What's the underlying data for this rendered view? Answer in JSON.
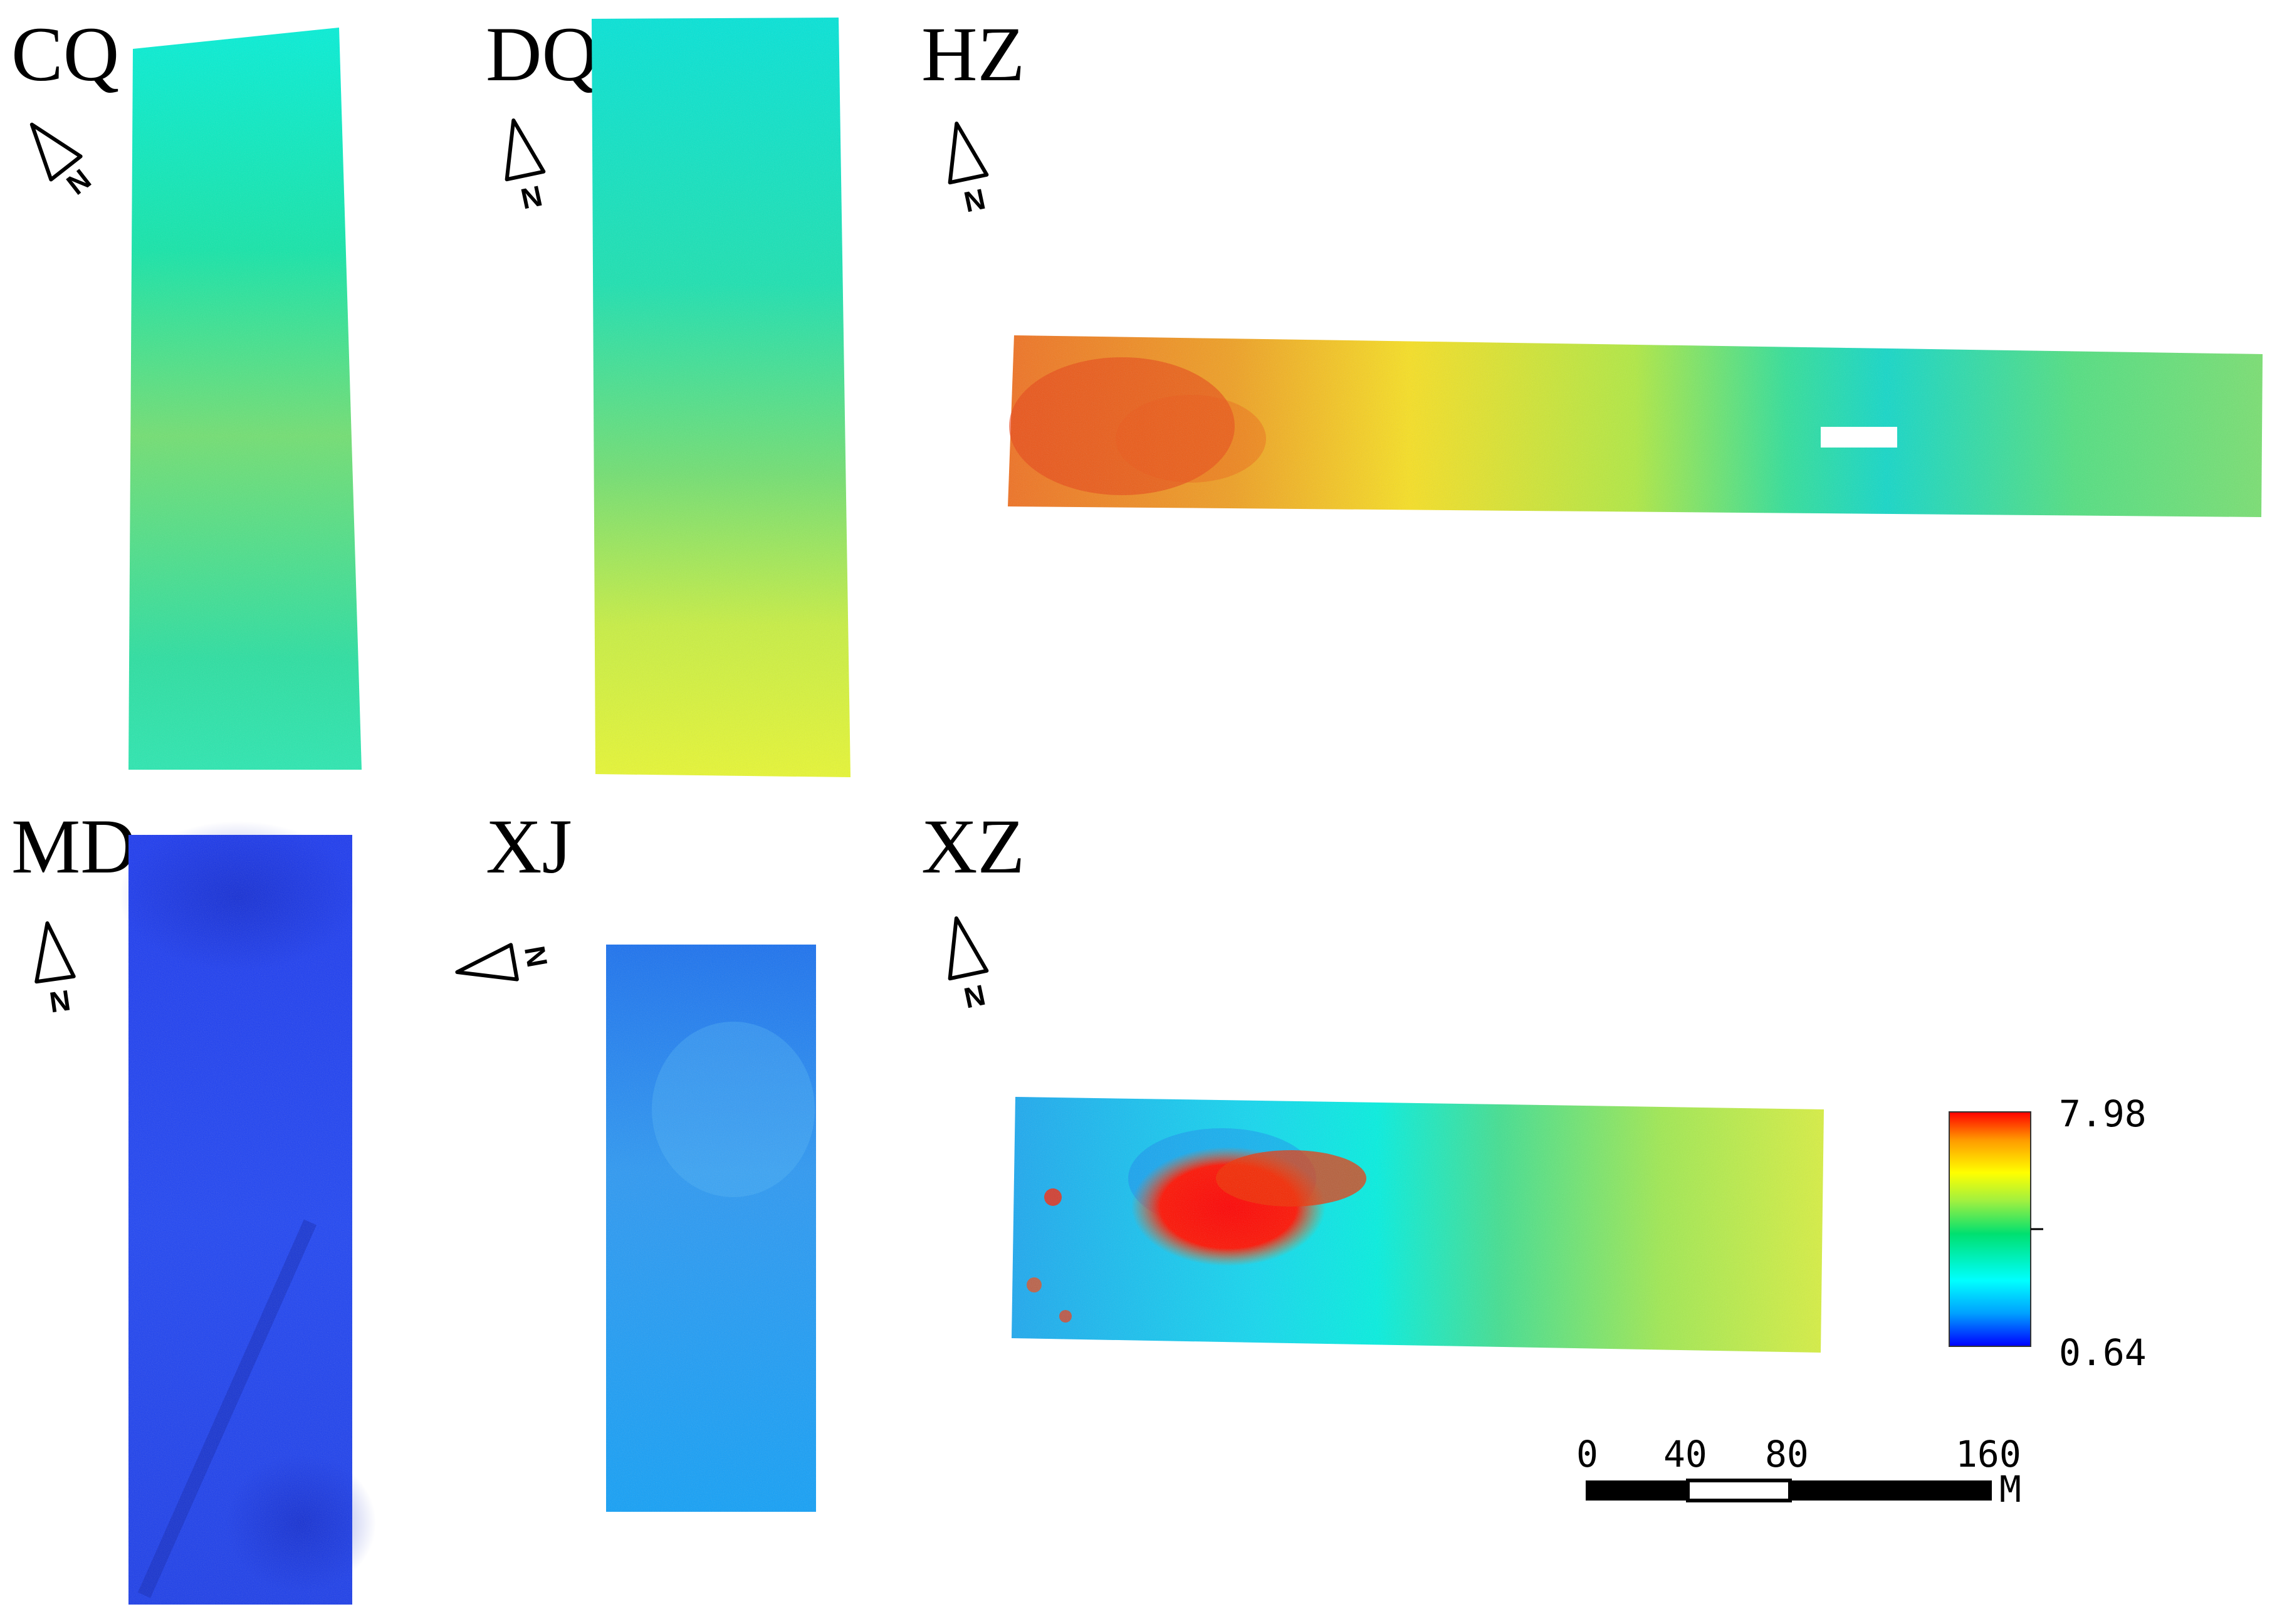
{
  "panels": [
    {
      "label": "CQ"
    },
    {
      "label": "DQ"
    },
    {
      "label": "HZ"
    },
    {
      "label": "MD"
    },
    {
      "label": "XJ"
    },
    {
      "label": "XZ"
    }
  ],
  "north_arrow": {
    "letter": "N"
  },
  "legend": {
    "max_label": "7.98",
    "min_label": "0.64",
    "colormap": [
      "#0000ff",
      "#00a0ff",
      "#00ffff",
      "#00e070",
      "#a0f040",
      "#ffff00",
      "#ff9a00",
      "#ff0000"
    ]
  },
  "scale_bar": {
    "ticks": [
      "0",
      "40",
      "80",
      "160"
    ],
    "unit": "M"
  }
}
